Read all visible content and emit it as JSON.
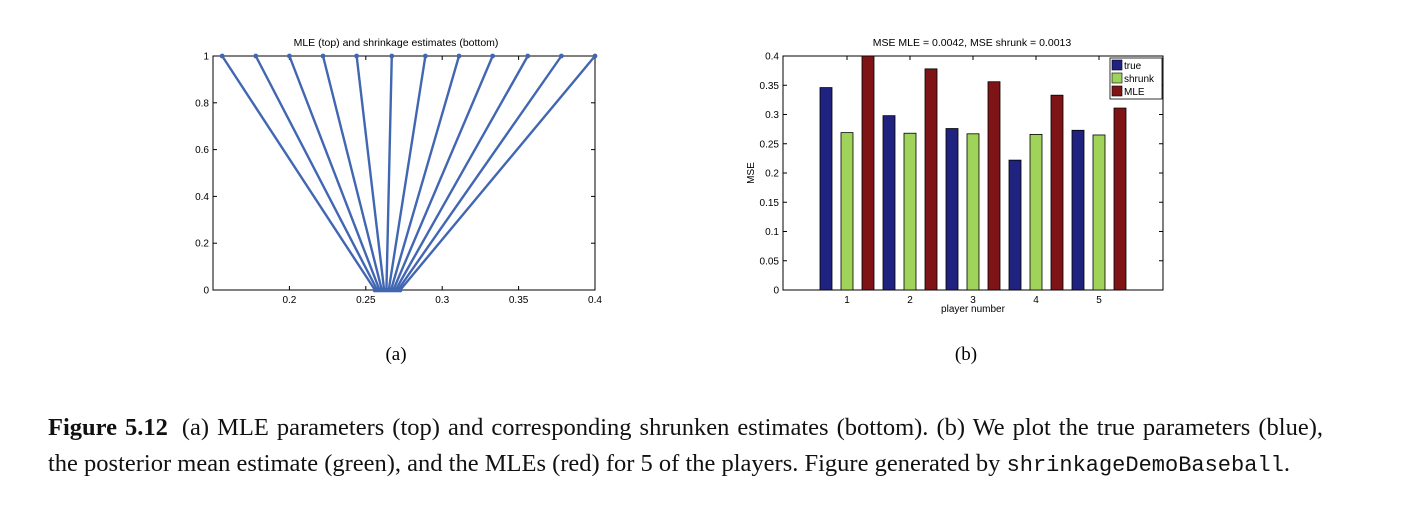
{
  "chart_data": [
    {
      "panel_label": "(a)",
      "type": "line",
      "title": "MLE (top) and shrinkage estimates (bottom)",
      "xlabel": "",
      "ylabel": "",
      "xlim": [
        0.15,
        0.4
      ],
      "ylim": [
        0,
        1
      ],
      "xticks": [
        "0.2",
        "0.25",
        "0.3",
        "0.35",
        "0.4"
      ],
      "yticks": [
        "0",
        "0.2",
        "0.4",
        "0.6",
        "0.8",
        "1"
      ],
      "series_color": "#4166b2",
      "segments": [
        {
          "mle": 0.156,
          "shrunk": 0.256
        },
        {
          "mle": 0.178,
          "shrunk": 0.2575
        },
        {
          "mle": 0.2,
          "shrunk": 0.259
        },
        {
          "mle": 0.222,
          "shrunk": 0.2605
        },
        {
          "mle": 0.244,
          "shrunk": 0.262
        },
        {
          "mle": 0.267,
          "shrunk": 0.2635
        },
        {
          "mle": 0.289,
          "shrunk": 0.265
        },
        {
          "mle": 0.311,
          "shrunk": 0.2665
        },
        {
          "mle": 0.333,
          "shrunk": 0.268
        },
        {
          "mle": 0.356,
          "shrunk": 0.2695
        },
        {
          "mle": 0.378,
          "shrunk": 0.271
        },
        {
          "mle": 0.4,
          "shrunk": 0.2725
        }
      ]
    },
    {
      "panel_label": "(b)",
      "type": "bar",
      "title": "MSE MLE = 0.0042, MSE shrunk = 0.0013",
      "xlabel": "player number",
      "ylabel": "MSE",
      "ylim": [
        0,
        0.4
      ],
      "yticks": [
        "0",
        "0.05",
        "0.1",
        "0.15",
        "0.2",
        "0.25",
        "0.3",
        "0.35",
        "0.4"
      ],
      "categories": [
        "1",
        "2",
        "3",
        "4",
        "5"
      ],
      "legend_position": "top-right",
      "series": [
        {
          "name": "true",
          "color": "#1f237f",
          "values": [
            0.346,
            0.298,
            0.276,
            0.222,
            0.273
          ]
        },
        {
          "name": "shrunk",
          "color": "#9fd35a",
          "values": [
            0.269,
            0.268,
            0.267,
            0.266,
            0.265
          ]
        },
        {
          "name": "MLE",
          "color": "#7f1416",
          "values": [
            0.4,
            0.378,
            0.356,
            0.333,
            0.311
          ]
        }
      ]
    }
  ],
  "caption": {
    "label": "Figure 5.12",
    "text": "(a) MLE parameters (top) and corresponding shrunken estimates (bottom). (b) We plot the true parameters (blue), the posterior mean estimate (green), and the MLEs (red) for 5 of the players. Figure generated by ",
    "code": "shrinkageDemoBaseball",
    "end": "."
  }
}
